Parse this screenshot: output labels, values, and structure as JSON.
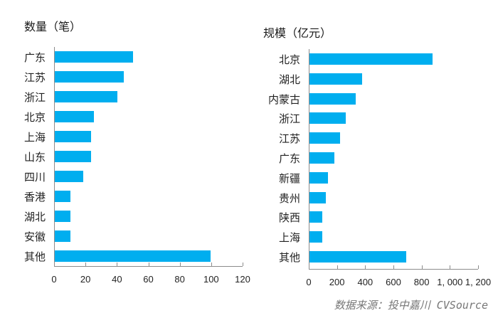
{
  "chart_data": [
    {
      "type": "bar",
      "orientation": "horizontal",
      "title": "数量（笔）",
      "categories": [
        "广东",
        "江苏",
        "浙江",
        "北京",
        "上海",
        "山东",
        "四川",
        "香港",
        "湖北",
        "安徽",
        "其他"
      ],
      "values": [
        50,
        44,
        40,
        25,
        23,
        23,
        18,
        10,
        10,
        10,
        99
      ],
      "xlabel": "",
      "ylabel": "",
      "xlim": [
        0,
        120
      ],
      "xticks": [
        "0",
        "20",
        "40",
        "60",
        "80",
        "100",
        "120"
      ],
      "color": "#00aeef",
      "grid": false
    },
    {
      "type": "bar",
      "orientation": "horizontal",
      "title": "规模（亿元）",
      "categories": [
        "北京",
        "湖北",
        "内蒙古",
        "浙江",
        "江苏",
        "广东",
        "新疆",
        "贵州",
        "陕西",
        "上海",
        "其他"
      ],
      "values": [
        870,
        372,
        328,
        256,
        218,
        177,
        132,
        115,
        93,
        93,
        686
      ],
      "xlabel": "",
      "ylabel": "",
      "xlim": [
        0,
        1200
      ],
      "xticks": [
        "0",
        "200",
        "400",
        "600",
        "800",
        "1, 000",
        "1, 200"
      ],
      "color": "#00aeef",
      "grid": false
    }
  ],
  "left": {
    "title": "数量（笔）",
    "labels": [
      "广东",
      "江苏",
      "浙江",
      "北京",
      "上海",
      "山东",
      "四川",
      "香港",
      "湖北",
      "安徽",
      "其他"
    ],
    "ticks": [
      "0",
      "20",
      "40",
      "60",
      "80",
      "100",
      "120"
    ]
  },
  "right": {
    "title": "规模（亿元）",
    "labels": [
      "北京",
      "湖北",
      "内蒙古",
      "浙江",
      "江苏",
      "广东",
      "新疆",
      "贵州",
      "陕西",
      "上海",
      "其他"
    ],
    "ticks": [
      "0",
      "200",
      "400",
      "600",
      "800",
      "1, 000",
      "1, 200"
    ]
  },
  "source": "数据来源：投中嘉川 CVSource"
}
